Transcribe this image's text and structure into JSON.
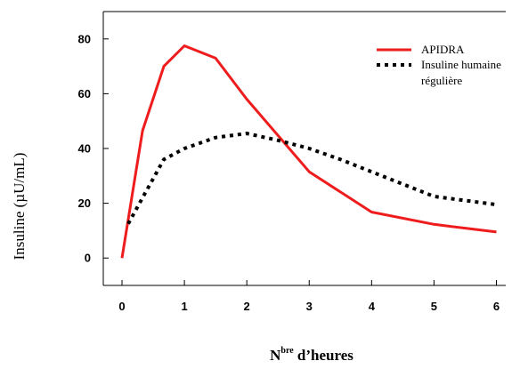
{
  "chart_data": {
    "type": "line",
    "title": "",
    "xlabel_main": "N",
    "xlabel_sup": "bre",
    "xlabel_rest": " d’heures",
    "ylabel": "Insuline (µU/mL)",
    "xlim": [
      -0.3,
      6.15
    ],
    "ylim": [
      -10,
      90
    ],
    "x_ticks": [
      "0",
      "1",
      "2",
      "3",
      "4",
      "5",
      "6"
    ],
    "y_ticks": [
      "0",
      "20",
      "40",
      "60",
      "80"
    ],
    "legend_position": "top-right",
    "series": [
      {
        "name": "APIDRA",
        "color": "#ee1c1c",
        "style": "solid",
        "x": [
          0,
          0.33,
          0.67,
          1.0,
          1.5,
          2.0,
          3.0,
          4.0,
          5.0,
          6.0
        ],
        "y": [
          0,
          46.5,
          70,
          77.5,
          73,
          58,
          31.5,
          16.8,
          12.3,
          9.5
        ]
      },
      {
        "name": "Insuline humaine\nrégulière",
        "name_line1": "Insuline humaine",
        "name_line2": "régulière",
        "color": "#000000",
        "style": "dotted",
        "x": [
          0.1,
          0.33,
          0.67,
          1.0,
          1.5,
          2.0,
          2.5,
          3.0,
          3.5,
          4.0,
          5.0,
          6.0
        ],
        "y": [
          12.5,
          22,
          36,
          40,
          44,
          45.5,
          43,
          40,
          36,
          31.5,
          22.5,
          19.5
        ]
      }
    ]
  }
}
